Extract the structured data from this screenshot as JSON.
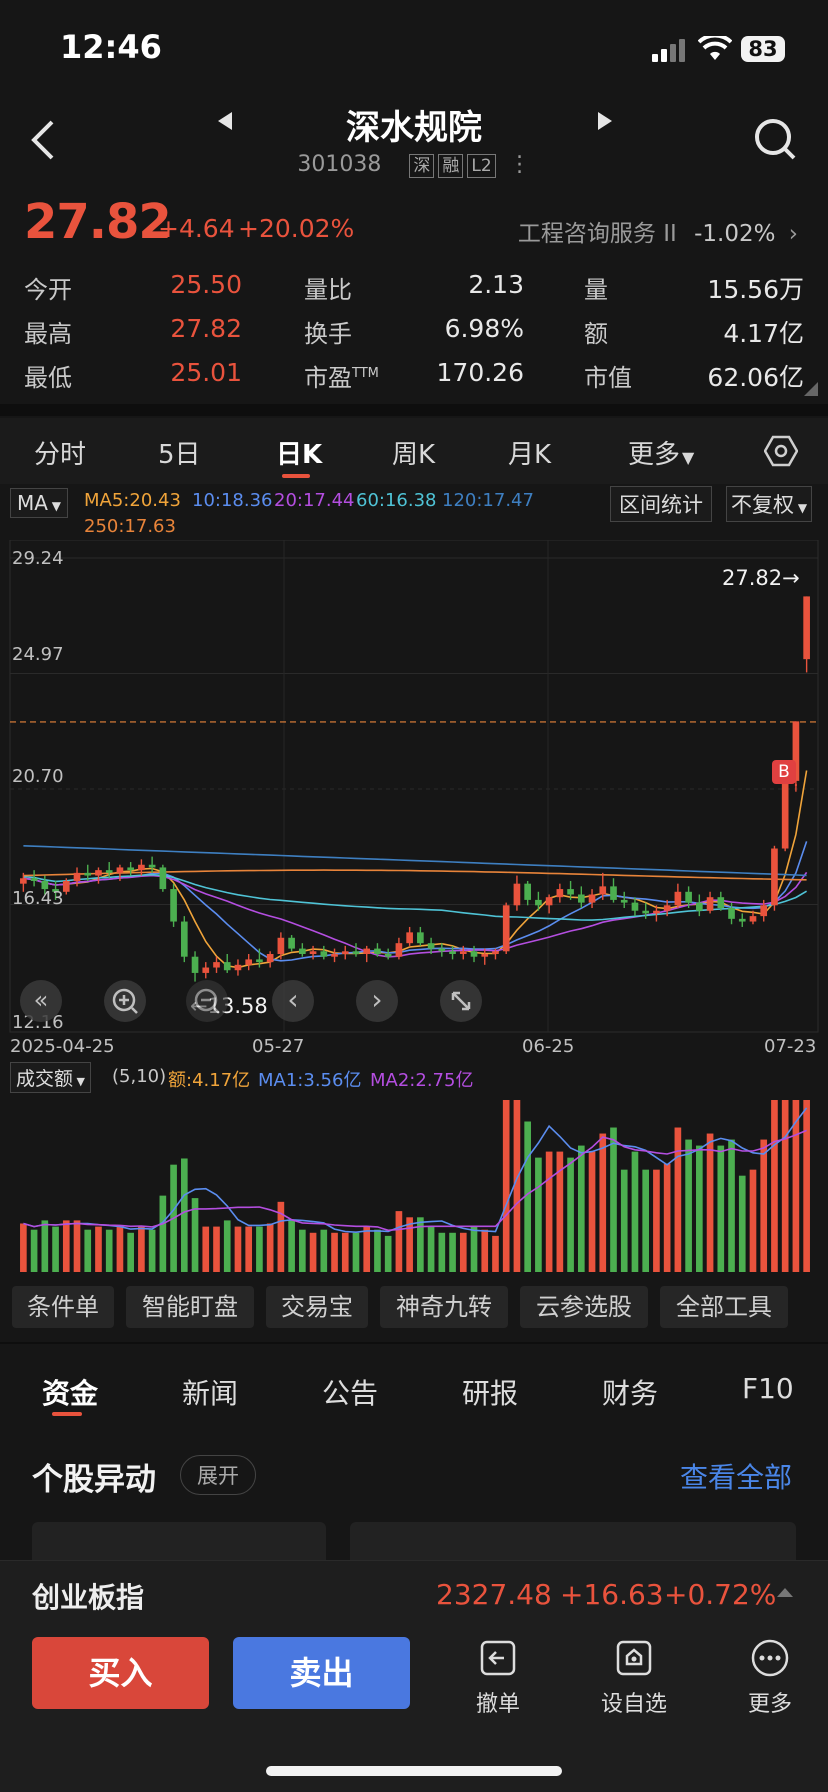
{
  "status": {
    "time": "12:46",
    "battery": "83"
  },
  "header": {
    "name": "深水规院",
    "code": "301038",
    "tags": [
      "深",
      "融",
      "L2"
    ]
  },
  "quote": {
    "price": "27.82",
    "change": "+4.64",
    "change_pct": "+20.02%",
    "industry": "工程咨询服务 II",
    "industry_pct": "-1.02%",
    "rows": [
      [
        {
          "label": "今开",
          "value": "25.50"
        },
        {
          "label": "量比",
          "value": "2.13"
        },
        {
          "label": "量",
          "value": "15.56万"
        }
      ],
      [
        {
          "label": "最高",
          "value": "27.82"
        },
        {
          "label": "换手",
          "value": "6.98%"
        },
        {
          "label": "额",
          "value": "4.17亿"
        }
      ],
      [
        {
          "label": "最低",
          "value": "25.01"
        },
        {
          "label": "市盈",
          "label_sup": "TTM",
          "value": "170.26"
        },
        {
          "label": "市值",
          "value": "62.06亿"
        }
      ]
    ]
  },
  "period_tabs": [
    "分时",
    "5日",
    "日K",
    "周K",
    "月K",
    "更多"
  ],
  "ma_legend": {
    "selector": "MA",
    "ma5": "MA5:20.43",
    "ma10": "10:18.36",
    "ma20": "20:17.44",
    "ma60": "60:16.38",
    "ma120": "120:17.47",
    "ma250": "250:17.63",
    "interval_btn": "区间统计",
    "adjust_btn": "不复权",
    "colors": {
      "ma5": "#f0a43a",
      "ma10": "#5b8def",
      "ma20": "#b44ee0",
      "ma60": "#4fc3d6",
      "ma120": "#3e7fc1",
      "ma250": "#e8843a"
    }
  },
  "chart_data": {
    "type": "candlestick",
    "y_ticks": [
      "29.24",
      "24.97",
      "20.70",
      "16.43",
      "12.16"
    ],
    "x_ticks": [
      "2025-04-25",
      "05-27",
      "06-25",
      "07-23"
    ],
    "last_price_label": "27.82→",
    "low_label": "←13.58",
    "buy_marker": "B",
    "ylim": [
      12.16,
      29.24
    ],
    "candles": [
      [
        17.2,
        17.6,
        16.9,
        17.4
      ],
      [
        17.4,
        17.7,
        17.1,
        17.3
      ],
      [
        17.3,
        17.5,
        16.8,
        17.0
      ],
      [
        17.0,
        17.3,
        16.6,
        16.9
      ],
      [
        16.9,
        17.4,
        16.8,
        17.3
      ],
      [
        17.3,
        17.8,
        17.1,
        17.6
      ],
      [
        17.6,
        17.9,
        17.3,
        17.5
      ],
      [
        17.5,
        17.8,
        17.2,
        17.7
      ],
      [
        17.7,
        18.0,
        17.4,
        17.6
      ],
      [
        17.6,
        17.9,
        17.3,
        17.8
      ],
      [
        17.8,
        18.0,
        17.5,
        17.7
      ],
      [
        17.7,
        18.1,
        17.5,
        17.9
      ],
      [
        17.9,
        18.2,
        17.6,
        17.8
      ],
      [
        17.8,
        17.9,
        16.9,
        17.0
      ],
      [
        17.0,
        17.2,
        15.6,
        15.8
      ],
      [
        15.8,
        16.0,
        14.3,
        14.5
      ],
      [
        14.5,
        14.7,
        13.58,
        13.9
      ],
      [
        13.9,
        14.3,
        13.7,
        14.1
      ],
      [
        14.1,
        14.5,
        13.9,
        14.3
      ],
      [
        14.3,
        14.6,
        13.9,
        14.0
      ],
      [
        14.0,
        14.4,
        13.8,
        14.2
      ],
      [
        14.2,
        14.6,
        14.0,
        14.4
      ],
      [
        14.4,
        14.8,
        14.1,
        14.3
      ],
      [
        14.3,
        14.7,
        14.1,
        14.6
      ],
      [
        14.6,
        15.4,
        14.4,
        15.2
      ],
      [
        15.2,
        15.3,
        14.7,
        14.8
      ],
      [
        14.8,
        15.0,
        14.5,
        14.6
      ],
      [
        14.6,
        14.9,
        14.4,
        14.7
      ],
      [
        14.7,
        14.9,
        14.4,
        14.5
      ],
      [
        14.5,
        14.8,
        14.3,
        14.6
      ],
      [
        14.6,
        14.9,
        14.4,
        14.7
      ],
      [
        14.7,
        15.0,
        14.5,
        14.6
      ],
      [
        14.6,
        14.9,
        14.3,
        14.8
      ],
      [
        14.8,
        15.0,
        14.5,
        14.6
      ],
      [
        14.6,
        14.8,
        14.4,
        14.5
      ],
      [
        14.5,
        15.2,
        14.4,
        15.0
      ],
      [
        15.0,
        15.6,
        14.9,
        15.4
      ],
      [
        15.4,
        15.6,
        14.9,
        15.0
      ],
      [
        15.0,
        15.2,
        14.6,
        14.8
      ],
      [
        14.8,
        15.0,
        14.5,
        14.7
      ],
      [
        14.7,
        14.9,
        14.4,
        14.6
      ],
      [
        14.6,
        14.9,
        14.4,
        14.7
      ],
      [
        14.7,
        14.9,
        14.3,
        14.5
      ],
      [
        14.5,
        14.8,
        14.2,
        14.6
      ],
      [
        14.6,
        14.8,
        14.4,
        14.7
      ],
      [
        14.7,
        16.5,
        14.6,
        16.4
      ],
      [
        16.4,
        17.5,
        16.2,
        17.2
      ],
      [
        17.2,
        17.3,
        16.4,
        16.6
      ],
      [
        16.6,
        16.9,
        16.2,
        16.4
      ],
      [
        16.4,
        16.8,
        16.1,
        16.7
      ],
      [
        16.7,
        17.2,
        16.5,
        17.0
      ],
      [
        17.0,
        17.3,
        16.6,
        16.8
      ],
      [
        16.8,
        17.1,
        16.3,
        16.5
      ],
      [
        16.5,
        17.0,
        16.3,
        16.8
      ],
      [
        16.8,
        17.6,
        16.6,
        17.1
      ],
      [
        17.1,
        17.4,
        16.5,
        16.6
      ],
      [
        16.6,
        16.9,
        16.3,
        16.5
      ],
      [
        16.5,
        16.7,
        16.0,
        16.2
      ],
      [
        16.2,
        16.5,
        15.9,
        16.1
      ],
      [
        16.1,
        16.4,
        15.8,
        16.2
      ],
      [
        16.2,
        16.6,
        16.0,
        16.4
      ],
      [
        16.4,
        17.2,
        16.3,
        16.9
      ],
      [
        16.9,
        17.1,
        16.3,
        16.5
      ],
      [
        16.5,
        16.8,
        16.0,
        16.2
      ],
      [
        16.2,
        16.9,
        16.1,
        16.7
      ],
      [
        16.7,
        16.9,
        16.2,
        16.3
      ],
      [
        16.3,
        16.5,
        15.7,
        15.9
      ],
      [
        15.9,
        16.1,
        15.6,
        15.8
      ],
      [
        15.8,
        16.2,
        15.7,
        16.0
      ],
      [
        16.0,
        16.6,
        15.8,
        16.4
      ],
      [
        16.4,
        18.6,
        16.2,
        18.5
      ],
      [
        18.5,
        21.0,
        18.4,
        21.0
      ],
      [
        21.0,
        23.2,
        20.6,
        23.2
      ],
      [
        25.5,
        27.82,
        25.01,
        27.82
      ]
    ]
  },
  "volume": {
    "selector": "成交额",
    "params": "(5,10)",
    "amount": "额:4.17亿",
    "ma1": "MA1:3.56亿",
    "ma2": "MA2:2.75亿"
  },
  "tools": [
    "条件单",
    "智能盯盘",
    "交易宝",
    "神奇九转",
    "云参选股",
    "全部工具"
  ],
  "news_tabs": [
    "资金",
    "新闻",
    "公告",
    "研报",
    "财务",
    "F10"
  ],
  "abnormal": {
    "title": "个股异动",
    "expand": "展开",
    "view_all": "查看全部"
  },
  "index_bar": {
    "name": "创业板指",
    "price": "2327.48",
    "change": "+16.63",
    "pct": "+0.72%"
  },
  "actions": {
    "buy": "买入",
    "sell": "卖出",
    "cancel": "撤单",
    "watch": "设自选",
    "more": "更多"
  }
}
